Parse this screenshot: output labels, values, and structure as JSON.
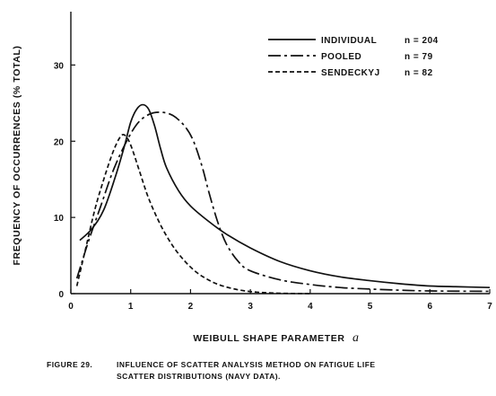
{
  "chart_data": {
    "type": "line",
    "title": "",
    "xlabel": "WEIBULL SHAPE PARAMETER",
    "xlabel_symbol": "a",
    "ylabel": "FREQUENCY OF OCCURRENCES (% TOTAL)",
    "xlim": [
      0,
      7
    ],
    "ylim": [
      0,
      37
    ],
    "x_ticks": [
      0,
      1,
      2,
      3,
      4,
      5,
      6,
      7
    ],
    "y_ticks": [
      0,
      10,
      20,
      30
    ],
    "grid": false,
    "legend_position": "top-right",
    "series": [
      {
        "name": "INDIVIDUAL",
        "n_label": "n = 204",
        "line_style": "solid",
        "points": [
          [
            0.15,
            7
          ],
          [
            0.35,
            8.5
          ],
          [
            0.55,
            11
          ],
          [
            0.75,
            15.5
          ],
          [
            0.9,
            19.5
          ],
          [
            1.0,
            22.5
          ],
          [
            1.1,
            24.2
          ],
          [
            1.2,
            24.8
          ],
          [
            1.3,
            24.2
          ],
          [
            1.4,
            22
          ],
          [
            1.5,
            19
          ],
          [
            1.6,
            16.5
          ],
          [
            1.8,
            13.5
          ],
          [
            2.0,
            11.5
          ],
          [
            2.3,
            9.5
          ],
          [
            2.6,
            7.8
          ],
          [
            3.0,
            6
          ],
          [
            3.5,
            4.2
          ],
          [
            4.0,
            3
          ],
          [
            4.5,
            2.2
          ],
          [
            5.0,
            1.7
          ],
          [
            5.5,
            1.3
          ],
          [
            6.0,
            1.0
          ],
          [
            6.5,
            0.9
          ],
          [
            7.0,
            0.8
          ]
        ]
      },
      {
        "name": "POOLED",
        "n_label": "n = 79",
        "line_style": "dash-dot",
        "points": [
          [
            0.1,
            2
          ],
          [
            0.3,
            7
          ],
          [
            0.5,
            11.5
          ],
          [
            0.7,
            16
          ],
          [
            0.9,
            19.5
          ],
          [
            1.1,
            22.2
          ],
          [
            1.3,
            23.5
          ],
          [
            1.5,
            23.8
          ],
          [
            1.7,
            23.4
          ],
          [
            1.9,
            22
          ],
          [
            2.05,
            20
          ],
          [
            2.2,
            16.5
          ],
          [
            2.3,
            13.5
          ],
          [
            2.45,
            9.5
          ],
          [
            2.6,
            6.5
          ],
          [
            2.8,
            4.2
          ],
          [
            3.0,
            3
          ],
          [
            3.5,
            1.8
          ],
          [
            4.0,
            1.2
          ],
          [
            4.5,
            0.8
          ],
          [
            5.0,
            0.6
          ],
          [
            5.5,
            0.45
          ],
          [
            6.0,
            0.35
          ],
          [
            7.0,
            0.3
          ]
        ]
      },
      {
        "name": "SENDECKYJ",
        "n_label": "n = 82",
        "line_style": "dashed",
        "points": [
          [
            0.1,
            1
          ],
          [
            0.25,
            6
          ],
          [
            0.4,
            11
          ],
          [
            0.55,
            15
          ],
          [
            0.7,
            18.5
          ],
          [
            0.82,
            20.5
          ],
          [
            0.9,
            20.8
          ],
          [
            1.0,
            19.5
          ],
          [
            1.15,
            16
          ],
          [
            1.3,
            12.5
          ],
          [
            1.5,
            9
          ],
          [
            1.7,
            6.3
          ],
          [
            1.9,
            4.3
          ],
          [
            2.1,
            2.8
          ],
          [
            2.3,
            1.8
          ],
          [
            2.5,
            1.1
          ],
          [
            2.8,
            0.5
          ],
          [
            3.1,
            0.2
          ],
          [
            3.5,
            0.05
          ],
          [
            4.0,
            0
          ]
        ]
      }
    ]
  },
  "caption": {
    "label": "FIGURE 29.",
    "line1": "INFLUENCE OF SCATTER ANALYSIS METHOD ON FATIGUE LIFE",
    "line2": "SCATTER DISTRIBUTIONS (NAVY DATA)."
  }
}
